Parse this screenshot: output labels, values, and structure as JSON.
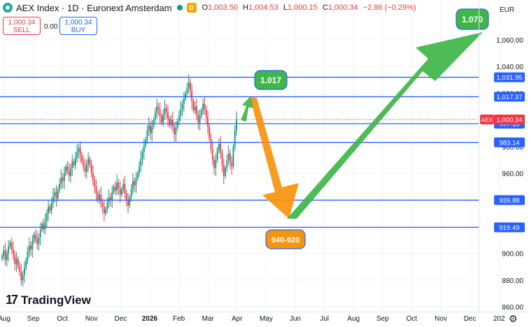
{
  "header": {
    "symbol": "AEX Index · 1D · Euronext Amsterdam",
    "badge": "D",
    "o_label": "O",
    "o_value": "1,003.50",
    "h_label": "H",
    "h_value": "1,004.53",
    "l_label": "L",
    "l_value": "1,000.15",
    "c_label": "C",
    "c_value": "1,000.34",
    "change": "−2.86 (−0.29%)"
  },
  "trade": {
    "sell_price": "1,000.34",
    "sell_label": "SELL",
    "spread": "0.00",
    "buy_price": "1,000.34",
    "buy_label": "BUY"
  },
  "branding": {
    "name": "TradingView"
  },
  "colors": {
    "up": "#089981",
    "down": "#f23645",
    "hline": "#2962ff",
    "green_arrow": "#3fb648",
    "orange_arrow": "#f7940d"
  },
  "chart_data": {
    "type": "candlestick",
    "currency": "EUR",
    "ylim": [
      855,
      1075
    ],
    "y_ticks": [
      860,
      880,
      900,
      920,
      940,
      960,
      980,
      1000,
      1020,
      1040,
      1060
    ],
    "y_tick_labels": [
      "860.00",
      "880.00",
      "900.00",
      "920.00",
      "940.00",
      "960.00",
      "980.00",
      "1,000.00",
      "1,020.00",
      "1,040.00",
      "1,060.00"
    ],
    "x_ticks": [
      "Aug",
      "Sep",
      "Oct",
      "Nov",
      "Dec",
      "2026",
      "Feb",
      "Mar",
      "Apr",
      "May",
      "Jun",
      "Jul",
      "Aug",
      "Sep",
      "Oct",
      "Nov",
      "Dec",
      "202"
    ],
    "current_price": {
      "symbol": "AEX",
      "value": 1000.34,
      "label": "1,000.34"
    },
    "horizontal_lines": [
      {
        "value": 1031.95,
        "label": "1,031.95"
      },
      {
        "value": 1017.37,
        "label": "1,017.37"
      },
      {
        "value": 997.16,
        "label": "997.16"
      },
      {
        "value": 983.14,
        "label": "983.14"
      },
      {
        "value": 939.88,
        "label": "939.88"
      },
      {
        "value": 919.49,
        "label": "919.49"
      }
    ],
    "annotations": [
      {
        "text": "1.017",
        "color": "#3fb648"
      },
      {
        "text": "940-920",
        "color": "#f7940d"
      },
      {
        "text": "1.070",
        "color": "#3fb648"
      }
    ],
    "close_series": [
      898,
      902,
      895,
      900,
      905,
      908,
      903,
      899,
      892,
      896,
      890,
      886,
      880,
      884,
      889,
      895,
      901,
      906,
      903,
      909,
      914,
      911,
      907,
      912,
      918,
      922,
      918,
      924,
      930,
      935,
      932,
      938,
      943,
      946,
      941,
      948,
      952,
      957,
      954,
      960,
      965,
      962,
      958,
      964,
      969,
      966,
      972,
      976,
      979,
      974,
      969,
      965,
      961,
      967,
      971,
      966,
      960,
      955,
      950,
      945,
      940,
      944,
      938,
      935,
      930,
      933,
      938,
      942,
      940,
      946,
      950,
      947,
      953,
      949,
      944,
      948,
      952,
      945,
      940,
      936,
      942,
      948,
      954,
      951,
      956,
      960,
      965,
      971,
      976,
      981,
      985,
      992,
      996,
      990,
      995,
      1000,
      1005,
      1010,
      1008,
      1003,
      998,
      1004,
      1009,
      1006,
      1001,
      996,
      1000,
      995,
      989,
      994,
      999,
      1003,
      1008,
      1012,
      1016,
      1020,
      1024,
      1028,
      1022,
      1014,
      1007,
      1010,
      1004,
      998,
      1003,
      1007,
      1012,
      1008,
      1002,
      995,
      986,
      978,
      970,
      964,
      970,
      978,
      982,
      975,
      966,
      958,
      964,
      970,
      975,
      968,
      965,
      980,
      992,
      1000.34
    ]
  }
}
